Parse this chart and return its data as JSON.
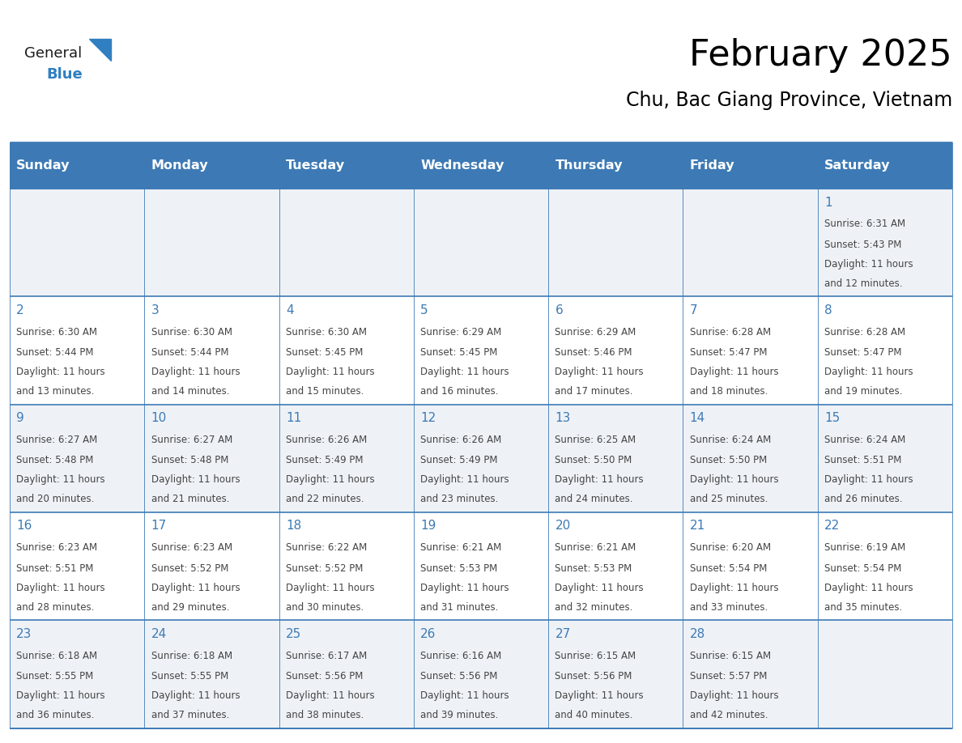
{
  "title": "February 2025",
  "subtitle": "Chu, Bac Giang Province, Vietnam",
  "header_bg": "#3d7ab5",
  "header_text": "#ffffff",
  "weekdays": [
    "Sunday",
    "Monday",
    "Tuesday",
    "Wednesday",
    "Thursday",
    "Friday",
    "Saturday"
  ],
  "row_bg_odd": "#eef2f7",
  "row_bg_even": "#ffffff",
  "grid_line_color": "#3d7ab5",
  "day_number_color": "#3d7ab5",
  "text_color": "#444444",
  "logo_general_color": "#1a1a1a",
  "logo_blue_color": "#2f7fc1",
  "calendar": [
    [
      null,
      null,
      null,
      null,
      null,
      null,
      {
        "day": 1,
        "sunrise": "6:31 AM",
        "sunset": "5:43 PM",
        "daylight": "11 hours and 12 minutes."
      }
    ],
    [
      {
        "day": 2,
        "sunrise": "6:30 AM",
        "sunset": "5:44 PM",
        "daylight": "11 hours and 13 minutes."
      },
      {
        "day": 3,
        "sunrise": "6:30 AM",
        "sunset": "5:44 PM",
        "daylight": "11 hours and 14 minutes."
      },
      {
        "day": 4,
        "sunrise": "6:30 AM",
        "sunset": "5:45 PM",
        "daylight": "11 hours and 15 minutes."
      },
      {
        "day": 5,
        "sunrise": "6:29 AM",
        "sunset": "5:45 PM",
        "daylight": "11 hours and 16 minutes."
      },
      {
        "day": 6,
        "sunrise": "6:29 AM",
        "sunset": "5:46 PM",
        "daylight": "11 hours and 17 minutes."
      },
      {
        "day": 7,
        "sunrise": "6:28 AM",
        "sunset": "5:47 PM",
        "daylight": "11 hours and 18 minutes."
      },
      {
        "day": 8,
        "sunrise": "6:28 AM",
        "sunset": "5:47 PM",
        "daylight": "11 hours and 19 minutes."
      }
    ],
    [
      {
        "day": 9,
        "sunrise": "6:27 AM",
        "sunset": "5:48 PM",
        "daylight": "11 hours and 20 minutes."
      },
      {
        "day": 10,
        "sunrise": "6:27 AM",
        "sunset": "5:48 PM",
        "daylight": "11 hours and 21 minutes."
      },
      {
        "day": 11,
        "sunrise": "6:26 AM",
        "sunset": "5:49 PM",
        "daylight": "11 hours and 22 minutes."
      },
      {
        "day": 12,
        "sunrise": "6:26 AM",
        "sunset": "5:49 PM",
        "daylight": "11 hours and 23 minutes."
      },
      {
        "day": 13,
        "sunrise": "6:25 AM",
        "sunset": "5:50 PM",
        "daylight": "11 hours and 24 minutes."
      },
      {
        "day": 14,
        "sunrise": "6:24 AM",
        "sunset": "5:50 PM",
        "daylight": "11 hours and 25 minutes."
      },
      {
        "day": 15,
        "sunrise": "6:24 AM",
        "sunset": "5:51 PM",
        "daylight": "11 hours and 26 minutes."
      }
    ],
    [
      {
        "day": 16,
        "sunrise": "6:23 AM",
        "sunset": "5:51 PM",
        "daylight": "11 hours and 28 minutes."
      },
      {
        "day": 17,
        "sunrise": "6:23 AM",
        "sunset": "5:52 PM",
        "daylight": "11 hours and 29 minutes."
      },
      {
        "day": 18,
        "sunrise": "6:22 AM",
        "sunset": "5:52 PM",
        "daylight": "11 hours and 30 minutes."
      },
      {
        "day": 19,
        "sunrise": "6:21 AM",
        "sunset": "5:53 PM",
        "daylight": "11 hours and 31 minutes."
      },
      {
        "day": 20,
        "sunrise": "6:21 AM",
        "sunset": "5:53 PM",
        "daylight": "11 hours and 32 minutes."
      },
      {
        "day": 21,
        "sunrise": "6:20 AM",
        "sunset": "5:54 PM",
        "daylight": "11 hours and 33 minutes."
      },
      {
        "day": 22,
        "sunrise": "6:19 AM",
        "sunset": "5:54 PM",
        "daylight": "11 hours and 35 minutes."
      }
    ],
    [
      {
        "day": 23,
        "sunrise": "6:18 AM",
        "sunset": "5:55 PM",
        "daylight": "11 hours and 36 minutes."
      },
      {
        "day": 24,
        "sunrise": "6:18 AM",
        "sunset": "5:55 PM",
        "daylight": "11 hours and 37 minutes."
      },
      {
        "day": 25,
        "sunrise": "6:17 AM",
        "sunset": "5:56 PM",
        "daylight": "11 hours and 38 minutes."
      },
      {
        "day": 26,
        "sunrise": "6:16 AM",
        "sunset": "5:56 PM",
        "daylight": "11 hours and 39 minutes."
      },
      {
        "day": 27,
        "sunrise": "6:15 AM",
        "sunset": "5:56 PM",
        "daylight": "11 hours and 40 minutes."
      },
      {
        "day": 28,
        "sunrise": "6:15 AM",
        "sunset": "5:57 PM",
        "daylight": "11 hours and 42 minutes."
      },
      null
    ]
  ]
}
